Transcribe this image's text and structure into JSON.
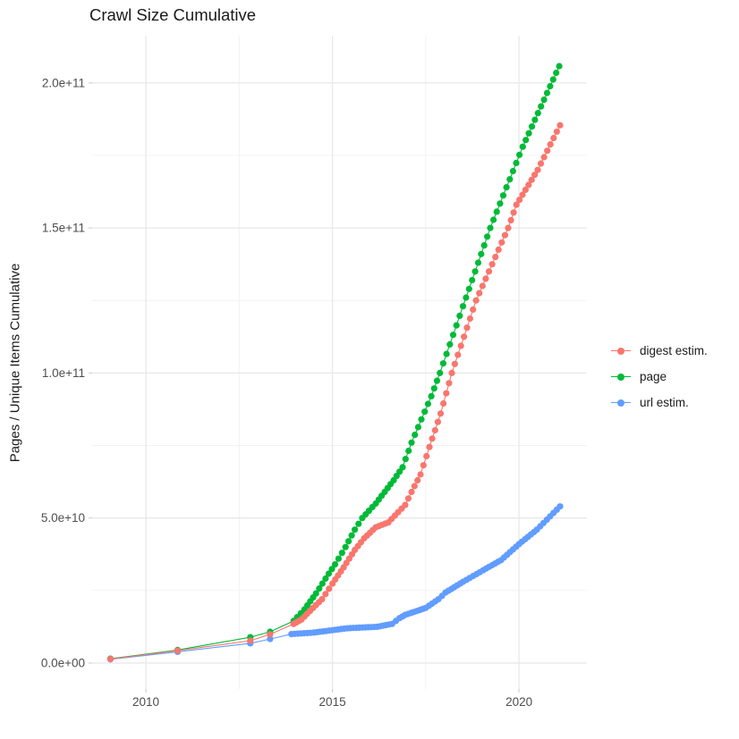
{
  "chart_data": {
    "type": "scatter",
    "title": "Crawl Size Cumulative",
    "xlabel": "",
    "ylabel": "Pages / Unique Items Cumulative",
    "grid": true,
    "legend_position": "right",
    "xlim": [
      2008.56,
      2021.82
    ],
    "ylim": [
      -8930000000.0,
      216260000000.0
    ],
    "x_ticks": [
      2010,
      2015,
      2020
    ],
    "x_tick_labels": [
      "2010",
      "2015",
      "2020"
    ],
    "x_minor_ticks": [
      2012.5,
      2017.5
    ],
    "y_ticks": [
      0,
      50000000000.0,
      100000000000.0,
      150000000000.0,
      200000000000.0
    ],
    "y_tick_labels": [
      "0.0e+00",
      "5.0e+10",
      "1.0e+11",
      "1.5e+11",
      "2.0e+11"
    ],
    "y_minor_ticks": [
      25000000000.0,
      75000000000.0,
      125000000000.0,
      175000000000.0
    ],
    "colors": {
      "background": "#ffffff",
      "grid_major": "#e8e8e8",
      "grid_minor": "#f1f1f1",
      "tick_mark": "#c9c9c9",
      "tick_label": "#4d4d4d",
      "text": "#1a1a1a"
    },
    "point_density": {
      "dense_from_year": 2013.9,
      "interval_years": 0.0833
    },
    "series": [
      {
        "name": "digest estim.",
        "color": "#F8766D",
        "points": [
          [
            2009.05,
            1400000000.0
          ],
          [
            2010.85,
            4300000000.0
          ],
          [
            2012.8,
            7700000000.0
          ],
          [
            2013.33,
            9900000000.0
          ],
          [
            2013.96,
            13500000000.0
          ],
          [
            2014.17,
            15000000000.0
          ],
          [
            2014.4,
            18000000000.0
          ],
          [
            2014.72,
            22000000000.0
          ],
          [
            2015.0,
            27400000000.0
          ],
          [
            2015.3,
            33000000000.0
          ],
          [
            2015.6,
            39000000000.0
          ],
          [
            2015.85,
            43000000000.0
          ],
          [
            2016.16,
            46800000000.0
          ],
          [
            2016.5,
            48500000000.0
          ],
          [
            2016.76,
            52000000000.0
          ],
          [
            2016.95,
            54500000000.0
          ],
          [
            2017.12,
            59000000000.0
          ],
          [
            2017.36,
            65000000000.0
          ],
          [
            2017.6,
            74500000000.0
          ],
          [
            2017.9,
            86000000000.0
          ],
          [
            2018.2,
            100000000000.0
          ],
          [
            2018.85,
            125000000000.0
          ],
          [
            2019.71,
            150000000000.0
          ],
          [
            2019.93,
            158000000000.0
          ],
          [
            2020.5,
            170000000000.0
          ],
          [
            2021.1,
            185400000000.0
          ]
        ]
      },
      {
        "name": "page",
        "color": "#00BA38",
        "points": [
          [
            2009.05,
            1500000000.0
          ],
          [
            2010.85,
            4500000000.0
          ],
          [
            2012.8,
            8900000000.0
          ],
          [
            2013.33,
            10800000000.0
          ],
          [
            2013.96,
            14500000000.0
          ],
          [
            2014.25,
            18500000000.0
          ],
          [
            2014.56,
            24000000000.0
          ],
          [
            2014.9,
            30800000000.0
          ],
          [
            2015.07,
            34000000000.0
          ],
          [
            2015.35,
            40000000000.0
          ],
          [
            2015.6,
            46000000000.0
          ],
          [
            2015.8,
            50000000000.0
          ],
          [
            2016.16,
            55000000000.0
          ],
          [
            2016.64,
            63000000000.0
          ],
          [
            2016.88,
            67500000000.0
          ],
          [
            2017.12,
            76000000000.0
          ],
          [
            2017.65,
            92000000000.0
          ],
          [
            2017.88,
            100000000000.0
          ],
          [
            2018.5,
            123000000000.0
          ],
          [
            2019.23,
            150000000000.0
          ],
          [
            2020.1,
            178000000000.0
          ],
          [
            2021.08,
            205800000000.0
          ]
        ]
      },
      {
        "name": "url estim.",
        "color": "#619CFF",
        "points": [
          [
            2009.05,
            1300000000.0
          ],
          [
            2010.85,
            3900000000.0
          ],
          [
            2012.8,
            6800000000.0
          ],
          [
            2013.33,
            8300000000.0
          ],
          [
            2013.9,
            10000000000.0
          ],
          [
            2014.5,
            10500000000.0
          ],
          [
            2015.4,
            12000000000.0
          ],
          [
            2016.2,
            12500000000.0
          ],
          [
            2016.6,
            13500000000.0
          ],
          [
            2016.8,
            15500000000.0
          ],
          [
            2016.95,
            16600000000.0
          ],
          [
            2017.5,
            19000000000.0
          ],
          [
            2017.84,
            22000000000.0
          ],
          [
            2018.03,
            24300000000.0
          ],
          [
            2018.5,
            28000000000.0
          ],
          [
            2019.04,
            32000000000.0
          ],
          [
            2019.52,
            35500000000.0
          ],
          [
            2020.0,
            41000000000.0
          ],
          [
            2020.48,
            46000000000.0
          ],
          [
            2021.1,
            54000000000.0
          ]
        ]
      }
    ]
  }
}
